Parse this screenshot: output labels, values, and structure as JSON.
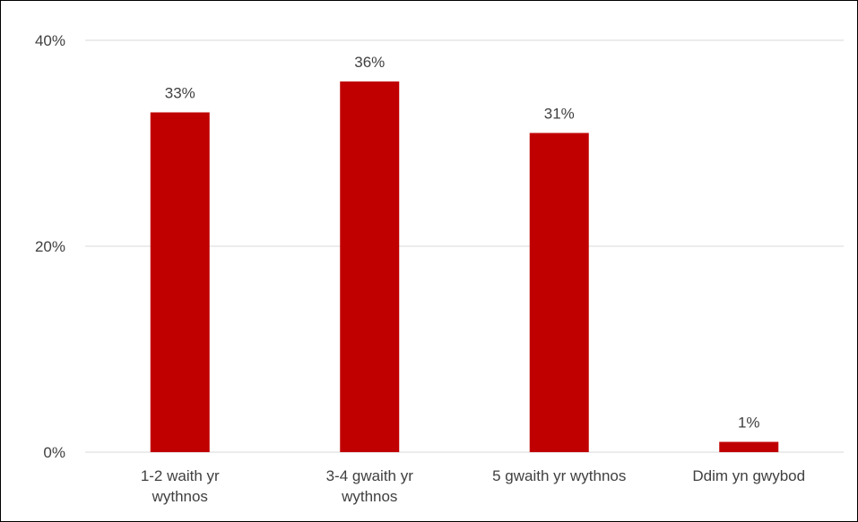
{
  "chart_data": {
    "type": "bar",
    "categories": [
      [
        "1-2 waith yr",
        "wythnos"
      ],
      [
        "3-4 gwaith yr",
        "wythnos"
      ],
      [
        "5 gwaith yr wythnos"
      ],
      [
        "Ddim yn gwybod"
      ]
    ],
    "values": [
      33,
      36,
      31,
      1
    ],
    "data_labels": [
      "33%",
      "36%",
      "31%",
      "1%"
    ],
    "y_ticks": [
      {
        "value": 0,
        "label": "0%"
      },
      {
        "value": 20,
        "label": "20%"
      },
      {
        "value": 40,
        "label": "40%"
      }
    ],
    "ylim": [
      0,
      40
    ],
    "grid": true,
    "legend": "none",
    "bar_color": "#C00000",
    "gridline_color": "#D9D9D9",
    "title": "",
    "xlabel": "",
    "ylabel": ""
  }
}
